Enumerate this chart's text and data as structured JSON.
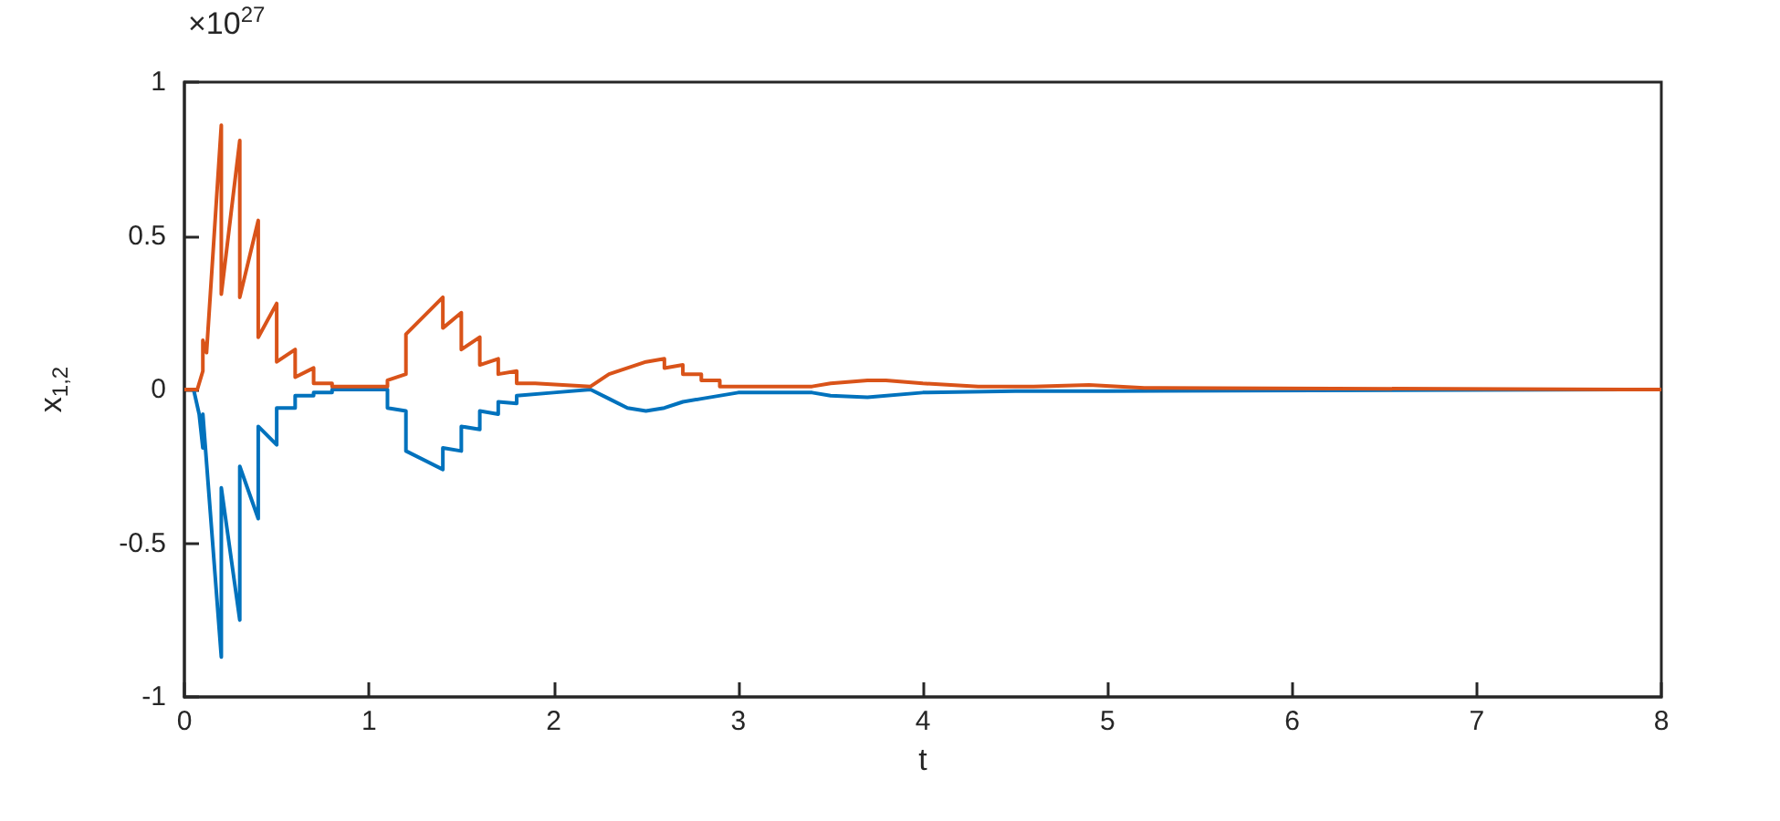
{
  "chart_data": {
    "type": "line",
    "xlabel": "t",
    "ylabel": "x$_{1,2}$",
    "annotations": [
      "×10$^{27}$"
    ],
    "xlim": [
      0,
      8
    ],
    "xticks": [
      0,
      1,
      2,
      3,
      4,
      5,
      6,
      7,
      8
    ],
    "ylim": [
      -1,
      1
    ],
    "yticks": [
      -1,
      -0.5,
      0,
      0.5,
      1
    ],
    "grid": false,
    "marker": "none",
    "series": [
      {
        "color": "#0072bd",
        "x": [
          0,
          0.05,
          0.08,
          0.1,
          0.1,
          0.2,
          0.2,
          0.3,
          0.3,
          0.4,
          0.4,
          0.5,
          0.5,
          0.6,
          0.6,
          0.7,
          0.7,
          0.8,
          0.8,
          1.1,
          1.1,
          1.2,
          1.2,
          1.4,
          1.4,
          1.5,
          1.5,
          1.6,
          1.6,
          1.7,
          1.7,
          1.8,
          1.8,
          2.0,
          2.2,
          2.3,
          2.4,
          2.5,
          2.6,
          2.7,
          2.8,
          3.0,
          3.4,
          3.5,
          3.7,
          4.0,
          4.5,
          5.0,
          8
        ],
        "values": [
          0,
          0,
          -0.08,
          -0.19,
          -0.08,
          -0.87,
          -0.32,
          -0.75,
          -0.25,
          -0.42,
          -0.12,
          -0.18,
          -0.06,
          -0.06,
          -0.02,
          -0.02,
          -0.01,
          -0.01,
          0,
          0,
          -0.06,
          -0.07,
          -0.2,
          -0.26,
          -0.19,
          -0.2,
          -0.12,
          -0.13,
          -0.07,
          -0.08,
          -0.04,
          -0.045,
          -0.02,
          -0.01,
          0,
          -0.03,
          -0.06,
          -0.07,
          -0.06,
          -0.04,
          -0.03,
          -0.01,
          -0.01,
          -0.02,
          -0.025,
          -0.01,
          -0.005,
          -0.005,
          0
        ]
      },
      {
        "color": "#d95319",
        "x": [
          0,
          0.07,
          0.1,
          0.1,
          0.12,
          0.2,
          0.2,
          0.3,
          0.3,
          0.4,
          0.4,
          0.5,
          0.5,
          0.6,
          0.6,
          0.7,
          0.7,
          0.8,
          0.8,
          1.1,
          1.1,
          1.2,
          1.2,
          1.4,
          1.4,
          1.5,
          1.5,
          1.6,
          1.6,
          1.7,
          1.7,
          1.8,
          1.8,
          1.9,
          2.2,
          2.3,
          2.4,
          2.5,
          2.6,
          2.6,
          2.7,
          2.7,
          2.8,
          2.8,
          2.9,
          2.9,
          3.4,
          3.5,
          3.7,
          3.8,
          4.0,
          4.3,
          4.6,
          4.9,
          5.2,
          8
        ],
        "values": [
          0,
          0,
          0.06,
          0.16,
          0.12,
          0.86,
          0.31,
          0.81,
          0.3,
          0.55,
          0.17,
          0.28,
          0.09,
          0.13,
          0.04,
          0.07,
          0.02,
          0.02,
          0.01,
          0.01,
          0.03,
          0.05,
          0.18,
          0.3,
          0.2,
          0.25,
          0.13,
          0.17,
          0.08,
          0.1,
          0.05,
          0.06,
          0.02,
          0.02,
          0.01,
          0.05,
          0.07,
          0.09,
          0.1,
          0.07,
          0.08,
          0.05,
          0.05,
          0.03,
          0.03,
          0.01,
          0.01,
          0.02,
          0.03,
          0.03,
          0.02,
          0.01,
          0.01,
          0.015,
          0.005,
          0
        ]
      }
    ]
  }
}
